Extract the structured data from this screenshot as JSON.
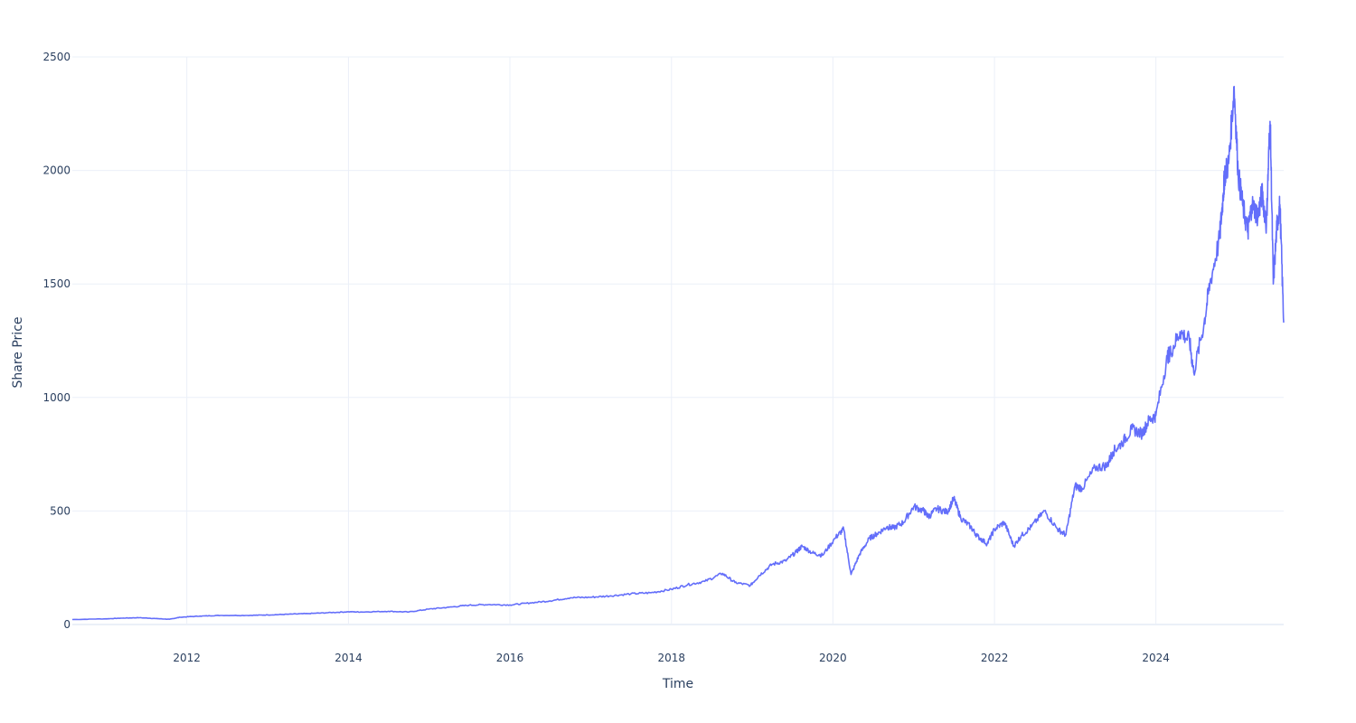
{
  "chart_data": {
    "type": "line",
    "title": "",
    "xlabel": "Time",
    "ylabel": "Share Price",
    "xlim": [
      "2010-08-01",
      "2025-08-01"
    ],
    "ylim": [
      0,
      2500
    ],
    "grid": true,
    "legend": "none",
    "line_color": "#636efa",
    "x_ticks": [
      "2012",
      "2014",
      "2016",
      "2018",
      "2020",
      "2022",
      "2024"
    ],
    "y_ticks": [
      "0",
      "500",
      "1000",
      "1500",
      "2000",
      "2500"
    ],
    "series": [
      {
        "x": [
          "2010-08-01",
          "2011-01-01",
          "2011-03-15",
          "2011-06-01",
          "2011-08-15",
          "2011-10-15",
          "2011-12-01",
          "2012-03-01",
          "2012-06-01",
          "2012-10-01",
          "2013-01-01",
          "2013-04-01",
          "2013-07-01",
          "2013-10-01",
          "2014-01-01",
          "2014-03-01",
          "2014-07-01",
          "2014-10-01",
          "2015-01-01",
          "2015-04-01",
          "2015-07-01",
          "2015-10-01",
          "2016-01-01",
          "2016-04-01",
          "2016-07-01",
          "2016-10-01",
          "2017-01-01",
          "2017-04-01",
          "2017-07-01",
          "2017-10-01",
          "2018-01-01",
          "2018-03-15",
          "2018-06-01",
          "2018-08-20",
          "2018-10-15",
          "2018-12-24",
          "2019-02-01",
          "2019-04-01",
          "2019-06-01",
          "2019-07-20",
          "2019-08-15",
          "2019-10-01",
          "2019-11-15",
          "2020-01-15",
          "2020-02-19",
          "2020-03-23",
          "2020-05-01",
          "2020-06-15",
          "2020-07-20",
          "2020-09-01",
          "2020-10-01",
          "2020-11-15",
          "2021-01-01",
          "2021-02-15",
          "2021-03-08",
          "2021-04-15",
          "2021-06-01",
          "2021-07-01",
          "2021-08-01",
          "2021-09-15",
          "2021-10-15",
          "2021-11-29",
          "2022-01-01",
          "2022-02-15",
          "2022-03-29",
          "2022-05-01",
          "2022-06-16",
          "2022-08-15",
          "2022-10-13",
          "2022-11-20",
          "2022-12-31",
          "2023-02-01",
          "2023-04-01",
          "2023-05-25",
          "2023-06-20",
          "2023-08-01",
          "2023-09-15",
          "2023-10-31",
          "2023-11-30",
          "2024-01-01",
          "2024-02-22",
          "2024-03-08",
          "2024-04-19",
          "2024-06-01",
          "2024-06-20",
          "2024-08-05",
          "2024-09-01",
          "2024-10-15",
          "2024-11-01",
          "2024-11-07",
          "2024-11-25",
          "2024-12-20",
          "2025-01-07",
          "2025-01-27",
          "2025-02-20",
          "2025-03-10",
          "2025-04-07",
          "2025-04-25",
          "2025-05-15",
          "2025-05-28",
          "2025-06-02",
          "2025-06-15",
          "2025-07-01",
          "2025-07-15",
          "2025-08-01"
        ],
        "values": [
          22,
          25,
          28,
          30,
          26,
          23,
          32,
          37,
          40,
          40,
          42,
          45,
          48,
          52,
          56,
          55,
          58,
          55,
          68,
          76,
          85,
          88,
          86,
          95,
          104,
          118,
          120,
          126,
          135,
          140,
          155,
          175,
          190,
          225,
          185,
          172,
          215,
          265,
          280,
          320,
          345,
          315,
          305,
          385,
          420,
          220,
          310,
          380,
          400,
          430,
          425,
          450,
          520,
          500,
          475,
          510,
          495,
          555,
          470,
          430,
          390,
          355,
          420,
          450,
          345,
          390,
          430,
          500,
          420,
          395,
          610,
          600,
          690,
          700,
          760,
          800,
          860,
          840,
          900,
          920,
          1180,
          1200,
          1290,
          1250,
          1110,
          1320,
          1500,
          1700,
          1900,
          1980,
          2030,
          2370,
          1990,
          1850,
          1730,
          1850,
          1800,
          1900,
          1760,
          2140,
          2180,
          1500,
          1750,
          1850,
          1330
        ]
      }
    ]
  }
}
